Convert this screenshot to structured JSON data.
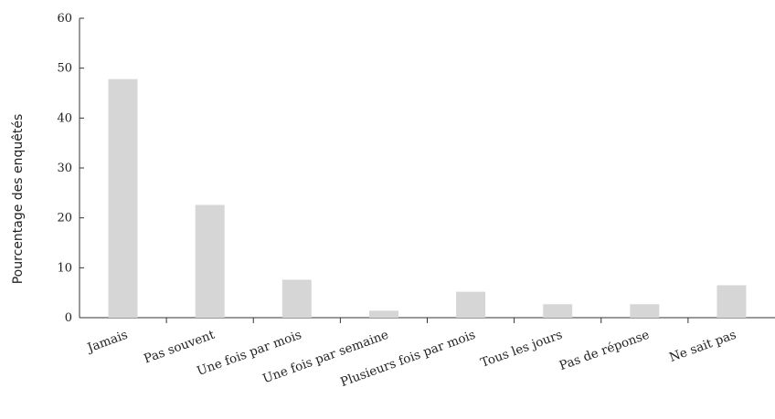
{
  "chart_data": {
    "type": "bar",
    "title": "",
    "xlabel": "",
    "ylabel": "Pourcentage des enquêtés",
    "ylim": [
      0,
      60
    ],
    "yticks": [
      0,
      10,
      20,
      30,
      40,
      50,
      60
    ],
    "categories": [
      "Jamais",
      "Pas souvent",
      "Une fois par mois",
      "Une fois par semaine",
      "Plusieurs fois par mois",
      "Tous les jours",
      "Pas de réponse",
      "Ne sait pas"
    ],
    "values": [
      47.8,
      22.6,
      7.6,
      1.4,
      5.2,
      2.7,
      2.7,
      6.5
    ],
    "bar_color": "#d6d6d6",
    "grid": false,
    "legend": "none"
  }
}
